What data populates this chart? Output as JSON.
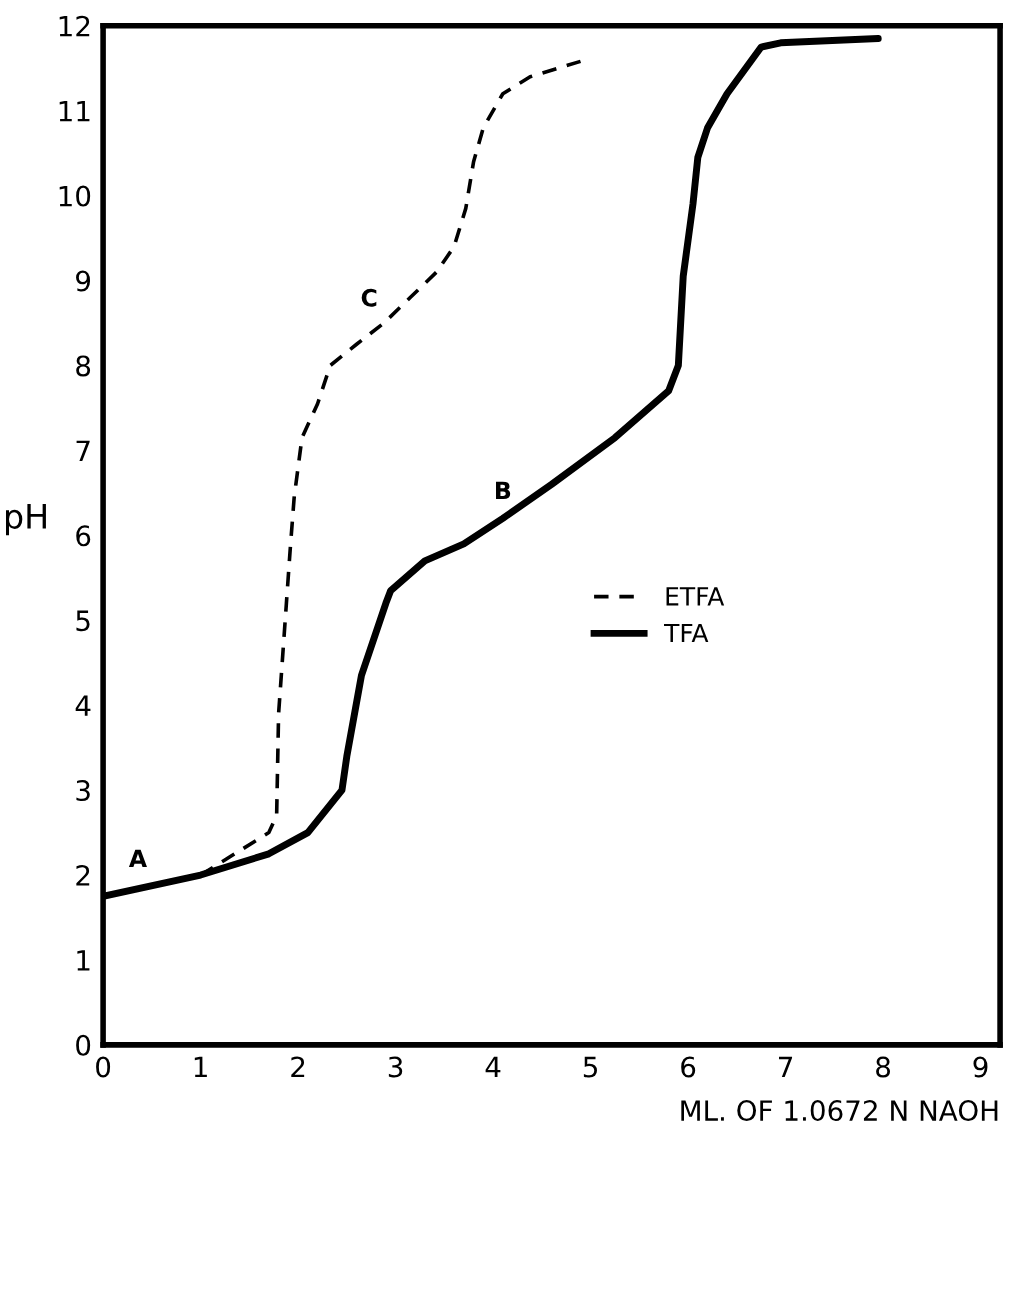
{
  "chart_data": {
    "type": "line",
    "xlabel": "ML. OF 1.0672 N NAOH",
    "ylabel": "pH",
    "xlim": [
      0,
      9.2
    ],
    "xticks": [
      0,
      1,
      2,
      3,
      4,
      5,
      6,
      7,
      8,
      9
    ],
    "ylim": [
      0,
      12
    ],
    "yticks": [
      0,
      1,
      2,
      3,
      4,
      5,
      6,
      7,
      8,
      9,
      10,
      11,
      12
    ],
    "grid": false,
    "legend": "center",
    "marker": "none",
    "series": [
      {
        "name": "ETFA",
        "color": "#000000",
        "line_style": "dashed",
        "x": [
          1.0,
          1.7,
          1.78,
          1.8,
          1.88,
          1.92,
          1.96,
          2.04,
          2.2,
          2.33,
          2.6,
          2.88,
          3.15,
          3.42,
          3.6,
          3.72,
          3.8,
          3.9,
          4.1,
          4.38,
          4.95
        ],
        "values": [
          2.0,
          2.5,
          2.7,
          3.9,
          5.2,
          5.85,
          6.45,
          7.15,
          7.55,
          8.0,
          8.25,
          8.5,
          8.8,
          9.1,
          9.4,
          9.85,
          10.4,
          10.8,
          11.2,
          11.4,
          11.6
        ]
      },
      {
        "name": "TFA",
        "color": "#000000",
        "line_style": "solid",
        "x": [
          0.0,
          1.0,
          1.7,
          2.1,
          2.45,
          2.5,
          2.65,
          2.9,
          2.95,
          3.3,
          3.7,
          4.1,
          4.6,
          5.25,
          5.8,
          5.9,
          5.95,
          6.05,
          6.1,
          6.2,
          6.4,
          6.75,
          6.95,
          7.95
        ],
        "values": [
          1.75,
          2.0,
          2.25,
          2.5,
          3.0,
          3.4,
          4.35,
          5.2,
          5.35,
          5.7,
          5.9,
          6.2,
          6.6,
          7.15,
          7.7,
          8.0,
          9.05,
          9.9,
          10.45,
          10.8,
          11.2,
          11.75,
          11.8,
          11.85
        ]
      }
    ],
    "annotations": [
      {
        "text": "A",
        "x": 0.5,
        "y": 1.9
      },
      {
        "text": "B",
        "x": 4.1,
        "y": 6.2
      },
      {
        "text": "C",
        "x": 2.9,
        "y": 8.5
      }
    ]
  }
}
